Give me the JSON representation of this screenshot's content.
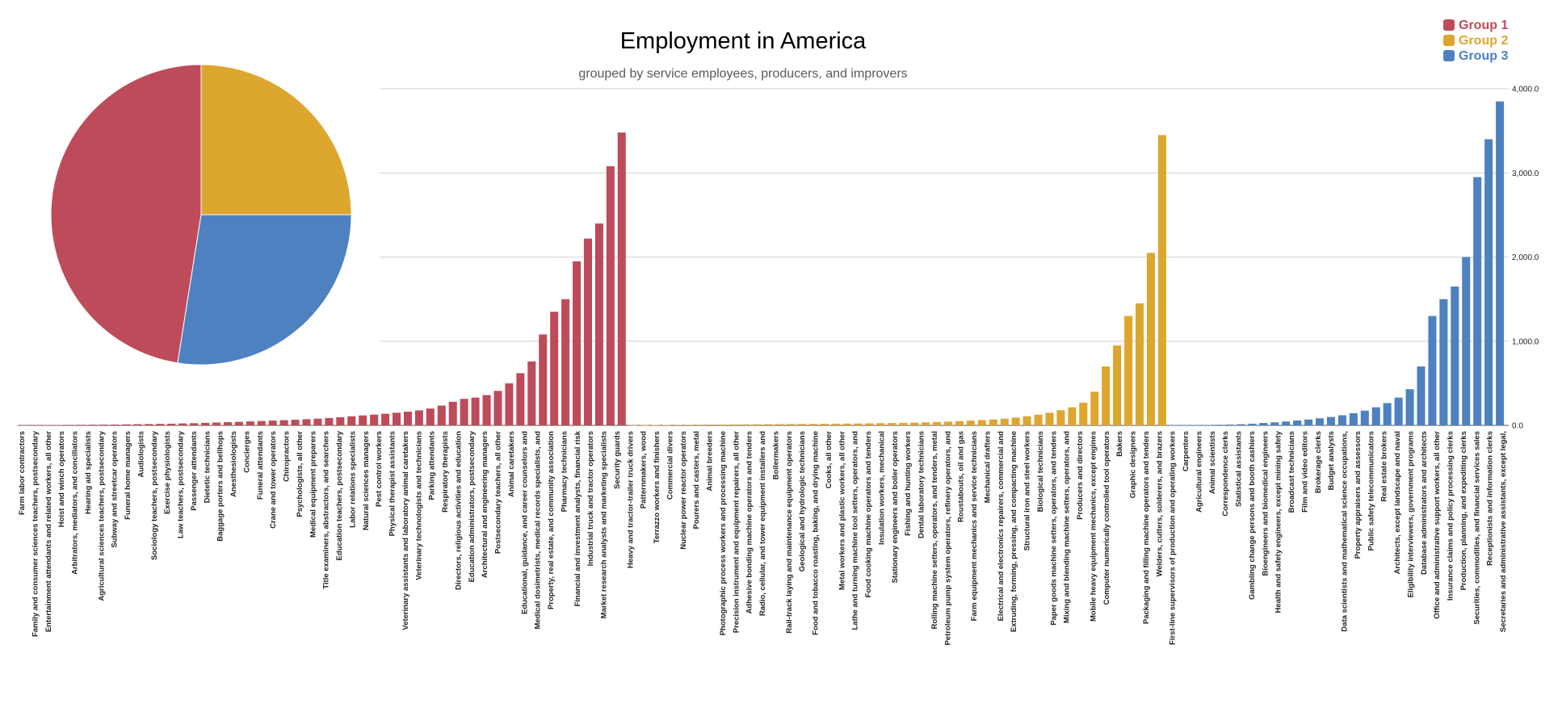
{
  "chart_data": {
    "type": "bar",
    "title": "Employment in America",
    "subtitle": "grouped by service employees, producers, and improvers",
    "ylim": [
      0,
      4000
    ],
    "yticks": [
      "0.0",
      "1,000.0",
      "2,000.0",
      "3,000.0",
      "4,000.0"
    ],
    "grid": true,
    "legend_position": "top-right",
    "series": [
      {
        "name": "Group 1",
        "color": "#BE4B5A",
        "labels": [
          "Farm labor contractors",
          "Family and consumer sciences teachers, postsecondary",
          "Entertainment attendants and related workers, all other",
          "Hoist and winch operators",
          "Arbitrators, mediators, and conciliators",
          "Hearing aid specialists",
          "Agricultural sciences teachers, postsecondary",
          "Subway and streetcar operators",
          "Funeral home managers",
          "Audiologists",
          "Sociology teachers, postsecondary",
          "Exercise physiologists",
          "Law teachers, postsecondary",
          "Passenger attendants",
          "Dietetic technicians",
          "Baggage porters and bellhops",
          "Anesthesiologists",
          "Concierges",
          "Funeral attendants",
          "Crane and tower operators",
          "Chiropractors",
          "Psychologists, all other",
          "Medical equipment preparers",
          "Title examiners, abstractors, and searchers",
          "Education teachers, postsecondary",
          "Labor relations specialists",
          "Natural sciences managers",
          "Pest control workers",
          "Physical therapist assistants",
          "Veterinary assistants and laboratory animal caretakers",
          "Veterinary technologists and technicians",
          "Parking attendants",
          "Respiratory therapists",
          "Directors, religious activities and education",
          "Education administrators, postsecondary",
          "Architectural and engineering managers",
          "Postsecondary teachers, all other",
          "Animal caretakers",
          "Educational, guidance, and career counselors and",
          "Medical dosimetrists, medical records specialists, and",
          "Property, real estate, and community association",
          "Pharmacy technicians",
          "Financial and investment analysts, financial risk",
          "Industrial truck and tractor operators",
          "Market research analysts and marketing specialists",
          "Security guards",
          "Heavy and tractor-trailer truck drivers"
        ],
        "values": [
          2,
          3,
          4,
          5,
          6,
          7,
          8,
          9,
          10,
          12,
          14,
          16,
          18,
          20,
          23,
          26,
          30,
          34,
          38,
          42,
          47,
          52,
          57,
          62,
          67,
          73,
          80,
          88,
          97,
          108,
          118,
          128,
          138,
          150,
          163,
          178,
          200,
          235,
          280,
          315,
          330,
          360,
          410,
          500,
          620,
          760,
          1080
        ],
        "top_values": [
          1350,
          1500,
          1950,
          2220,
          2400,
          3080,
          3480
        ]
      },
      {
        "name": "Group 2",
        "color": "#DDA62F",
        "labels": [
          "Patternmakers, wood",
          "Terrazzo workers and finishers",
          "Commercial divers",
          "Nuclear power reactor operators",
          "Pourers and casters, metal",
          "Animal breeders",
          "Photographic process workers and processing machine",
          "Precision instrument and equipment repairers, all other",
          "Adhesive bonding machine operators and tenders",
          "Radio, cellular, and tower equipment installers and",
          "Boilermakers",
          "Rail-track laying and maintenance equipment operators",
          "Geological and hydrologic technicians",
          "Food and tobacco roasting, baking, and drying machine",
          "Cooks, all other",
          "Metal workers and plastic workers, all other",
          "Lathe and turning machine tool setters, operators, and",
          "Food cooking machine operators and tenders",
          "Insulation workers, mechanical",
          "Stationary engineers and boiler operators",
          "Fishing and hunting workers",
          "Dental laboratory technicians",
          "Rolling machine setters, operators, and tenders, metal",
          "Petroleum pump system operators, refinery operators, and",
          "Roustabouts, oil and gas",
          "Farm equipment mechanics and service technicians",
          "Mechanical drafters",
          "Electrical and electronics repairers, commercial and",
          "Extruding, forming, pressing, and compacting machine",
          "Structural iron and steel workers",
          "Biological technicians",
          "Paper goods machine setters, operators, and tenders",
          "Mixing and blending machine setters, operators, and",
          "Producers and directors",
          "Mobile heavy equipment mechanics, except engines",
          "Computer numerically controlled tool operators",
          "Bakers",
          "Graphic designers",
          "Packaging and filling machine operators and tenders",
          "Welders, cutters, solderers, and brazers",
          "First-line supervisors of production and operating workers",
          "Carpenters"
        ],
        "values": [
          2,
          3,
          4,
          5,
          6,
          7,
          8,
          9,
          10,
          11,
          12,
          13,
          14,
          15,
          16,
          17,
          18,
          19,
          20,
          21,
          22,
          24,
          26,
          28,
          30,
          33,
          36,
          40,
          45,
          50,
          56,
          63,
          70,
          80,
          92,
          108,
          128,
          150,
          180,
          215,
          270,
          400
        ],
        "top_values": [
          700,
          950,
          1300,
          1450,
          2050,
          3450
        ]
      },
      {
        "name": "Group 3",
        "color": "#4E81C0",
        "labels": [
          "Agricultural engineers",
          "Animal scientists",
          "Correspondence clerks",
          "Statistical assistants",
          "Gambling change persons and booth cashiers",
          "Bioengineers and biomedical engineers",
          "Health and safety engineers, except mining safety",
          "Broadcast technicians",
          "Film and video editors",
          "Brokerage clerks",
          "Budget analysts",
          "Data scientists and mathematical science occupations,",
          "Property appraisers and assessors",
          "Public safety telecommunicators",
          "Real estate brokers",
          "Architects, except landscape and naval",
          "Eligibility interviewers, government programs",
          "Database administrators and architects",
          "Office and administrative support workers, all other",
          "Insurance claims and policy processing clerks",
          "Production, planning, and expediting clerks",
          "Securities, commodities, and financial services sales",
          "Receptionists and information clerks",
          "Secretaries and administrative assistants, except legal,"
        ],
        "values": [
          2,
          3,
          4,
          5,
          7,
          10,
          14,
          20,
          28,
          36,
          46,
          58,
          70,
          84,
          100,
          120,
          145,
          175,
          215,
          265,
          330,
          430,
          700,
          1300
        ],
        "top_values": [
          1500,
          1650,
          2000,
          2950,
          3400,
          3850
        ]
      }
    ],
    "pie": {
      "slices": [
        {
          "name": "Group 1",
          "value": 47.5
        },
        {
          "name": "Group 2",
          "value": 25.0
        },
        {
          "name": "Group 3",
          "value": 27.5
        }
      ]
    }
  }
}
